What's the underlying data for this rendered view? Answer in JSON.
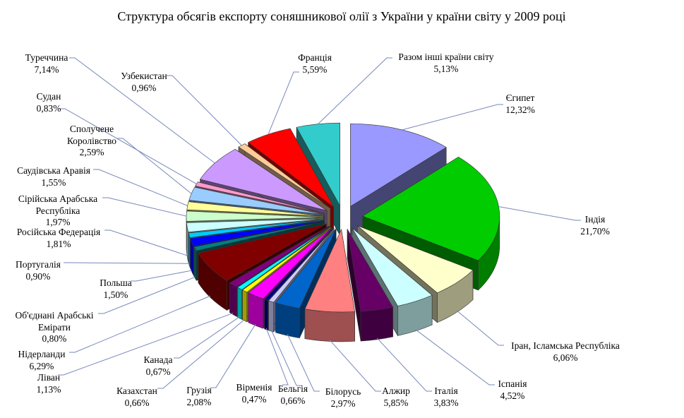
{
  "chart_data": {
    "type": "pie",
    "title": "Структура обсягів експорту соняшникової олії  з України у країни світу у 2009 році",
    "style": "3d-exploded",
    "start_angle_deg": 0,
    "direction": "clockwise",
    "legend_position": "none",
    "value_unit": "%",
    "slices": [
      {
        "name": "Єгипет",
        "value": 12.32,
        "pct_label": "12,32%",
        "color": "#9999FF",
        "label_lines": [
          "Єгипет",
          "12,32%"
        ]
      },
      {
        "name": "Індія",
        "value": 21.7,
        "pct_label": "21,70%",
        "color": "#00CC00",
        "label_lines": [
          "Індія",
          "21,70%"
        ]
      },
      {
        "name": "Іран, Ісламська Республіка",
        "value": 6.06,
        "pct_label": "6,06%",
        "color": "#FFFFCC",
        "label_lines": [
          "Іран, Ісламська Республіка",
          "6,06%"
        ]
      },
      {
        "name": "Іспанія",
        "value": 4.52,
        "pct_label": "4,52%",
        "color": "#CCFFFF",
        "label_lines": [
          "Іспанія",
          "4,52%"
        ]
      },
      {
        "name": "Італія",
        "value": 3.83,
        "pct_label": "3,83%",
        "color": "#660066",
        "label_lines": [
          "Італія",
          "3,83%"
        ]
      },
      {
        "name": "Алжир",
        "value": 5.85,
        "pct_label": "5,85%",
        "color": "#FF8080",
        "label_lines": [
          "Алжир",
          "5,85%"
        ]
      },
      {
        "name": "Білорусь",
        "value": 2.97,
        "pct_label": "2,97%",
        "color": "#0066CC",
        "label_lines": [
          "Білорусь",
          "2,97%"
        ]
      },
      {
        "name": "Бельгія",
        "value": 0.66,
        "pct_label": "0,66%",
        "color": "#CCCCFF",
        "label_lines": [
          "Бельгія",
          "0,66%"
        ]
      },
      {
        "name": "Вірменія",
        "value": 0.47,
        "pct_label": "0,47%",
        "color": "#000080",
        "label_lines": [
          "Вірменія",
          "0,47%"
        ]
      },
      {
        "name": "Грузія",
        "value": 2.08,
        "pct_label": "2,08%",
        "color": "#FF00FF",
        "label_lines": [
          "Грузія",
          "2,08%"
        ]
      },
      {
        "name": "Казахстан",
        "value": 0.66,
        "pct_label": "0,66%",
        "color": "#FFFF00",
        "label_lines": [
          "Казахстан",
          "0,66%"
        ]
      },
      {
        "name": "Канада",
        "value": 0.67,
        "pct_label": "0,67%",
        "color": "#00FFFF",
        "label_lines": [
          "Канада",
          "0,67%"
        ]
      },
      {
        "name": "Ліван",
        "value": 1.13,
        "pct_label": "1,13%",
        "color": "#800080",
        "label_lines": [
          "Ліван",
          "1,13%"
        ]
      },
      {
        "name": "Нідерланди",
        "value": 6.29,
        "pct_label": "6,29%",
        "color": "#800000",
        "label_lines": [
          "Нідерланди",
          "6,29%"
        ]
      },
      {
        "name": "Об'єднані Арабські Емірати",
        "value": 0.8,
        "pct_label": "0,80%",
        "color": "#008080",
        "label_lines": [
          "Об'єднані Арабські",
          "Емірати",
          "0,80%"
        ]
      },
      {
        "name": "Польша",
        "value": 1.5,
        "pct_label": "1,50%",
        "color": "#0000FF",
        "label_lines": [
          "Польша",
          "1,50%"
        ]
      },
      {
        "name": "Португалія",
        "value": 0.9,
        "pct_label": "0,90%",
        "color": "#00CCFF",
        "label_lines": [
          "Португалія",
          "0,90%"
        ]
      },
      {
        "name": "Російська Федерація",
        "value": 1.81,
        "pct_label": "1,81%",
        "color": "#CCFFFF",
        "label_lines": [
          "Російська Федерація",
          "1,81%"
        ]
      },
      {
        "name": "Сірійська Арабська Республіка",
        "value": 1.97,
        "pct_label": "1,97%",
        "color": "#CCFFCC",
        "label_lines": [
          "Сірійська Арабська",
          "Республіка",
          "1,97%"
        ]
      },
      {
        "name": "Саудівська Аравія",
        "value": 1.55,
        "pct_label": "1,55%",
        "color": "#FFFF99",
        "label_lines": [
          "Саудівська Аравія",
          "1,55%"
        ]
      },
      {
        "name": "Сполучене Королівство",
        "value": 2.59,
        "pct_label": "2,59%",
        "color": "#99CCFF",
        "label_lines": [
          "Сполучене",
          "Королівство",
          "2,59%"
        ]
      },
      {
        "name": "Судан",
        "value": 0.83,
        "pct_label": "0,83%",
        "color": "#FF99CC",
        "label_lines": [
          "Судан",
          "0,83%"
        ]
      },
      {
        "name": "Туреччина",
        "value": 7.14,
        "pct_label": "7,14%",
        "color": "#CC99FF",
        "label_lines": [
          "Туреччина",
          "7,14%"
        ]
      },
      {
        "name": "Узбекистан",
        "value": 0.96,
        "pct_label": "0,96%",
        "color": "#FFCC99",
        "label_lines": [
          "Узбекистан",
          "0,96%"
        ]
      },
      {
        "name": "Франція",
        "value": 5.59,
        "pct_label": "5,59%",
        "color": "#FF0000",
        "label_lines": [
          "Франція",
          "5,59%"
        ]
      },
      {
        "name": "Разом інші країни світу",
        "value": 5.13,
        "pct_label": "5,13%",
        "color": "#33CCCC",
        "label_lines": [
          "Разом інші країни світу",
          "5,13%"
        ]
      }
    ],
    "leader_line_color": "#7788bb"
  }
}
